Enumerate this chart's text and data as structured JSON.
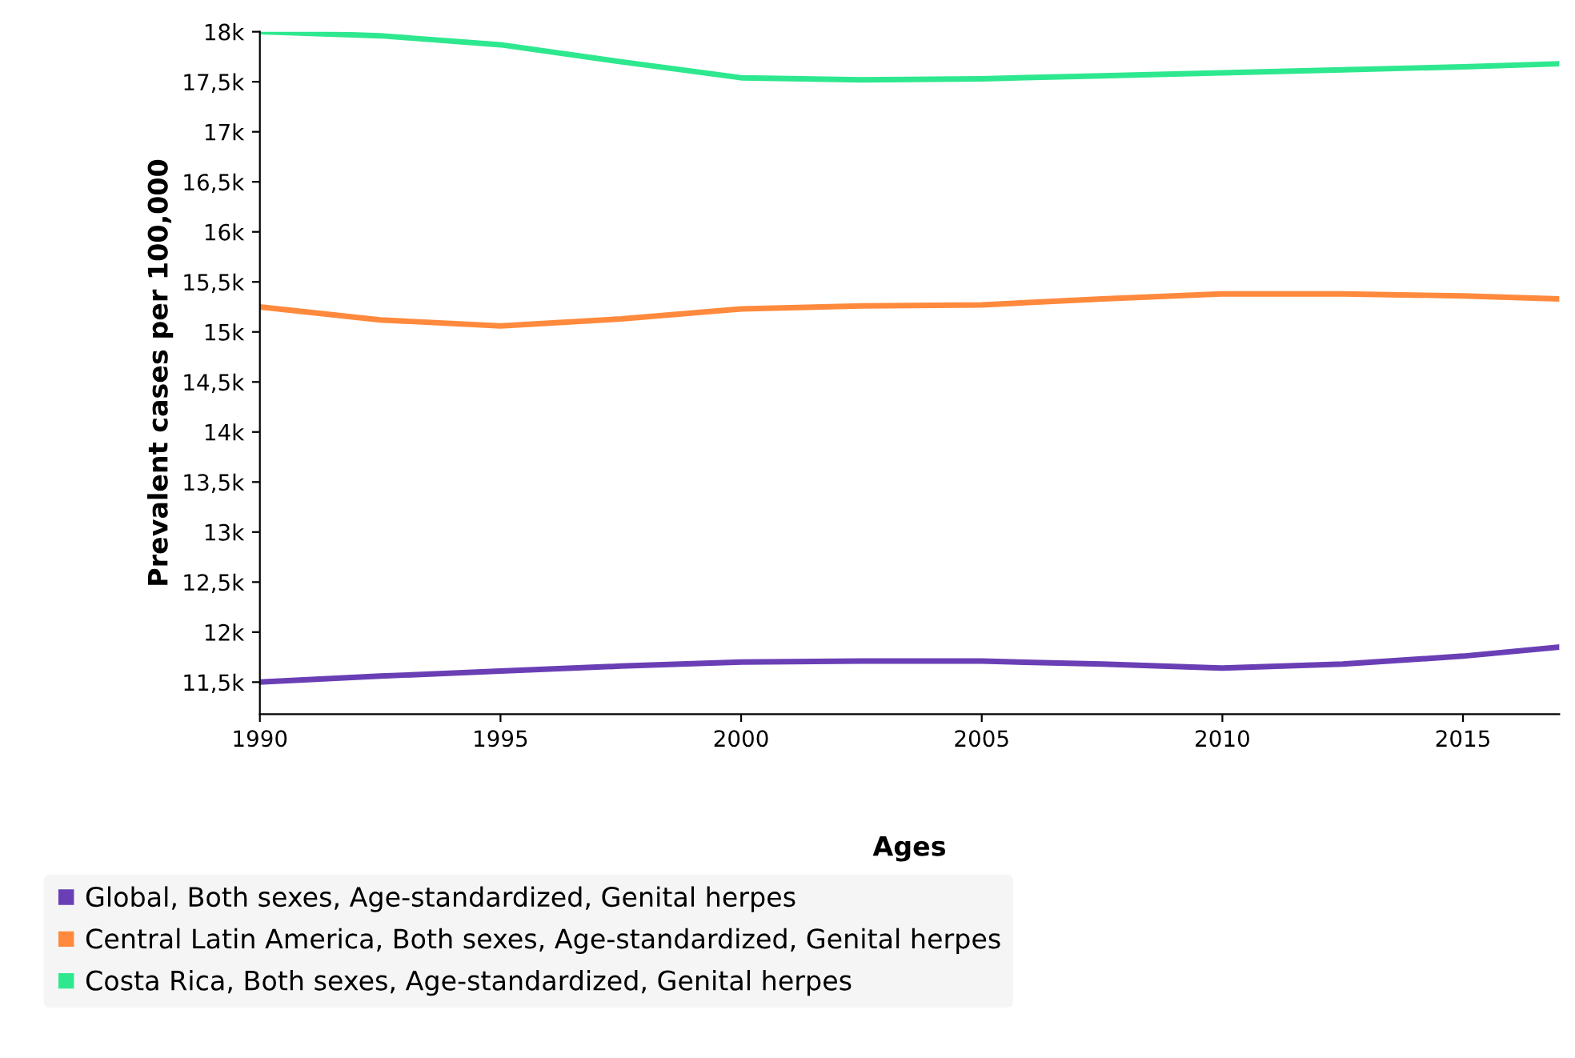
{
  "chart_data": {
    "type": "line",
    "xlabel": "Ages",
    "ylabel": "Prevalent cases per 100,000",
    "x": [
      1990,
      1992.5,
      1995,
      1997.5,
      2000,
      2002.5,
      2005,
      2007.5,
      2010,
      2012.5,
      2015,
      2017
    ],
    "series": [
      {
        "name": "Global, Both sexes, Age-standardized, Genital herpes",
        "color": "#6a3fb5",
        "values": [
          11500,
          11560,
          11610,
          11660,
          11700,
          11710,
          11710,
          11680,
          11640,
          11680,
          11760,
          11850
        ]
      },
      {
        "name": "Central Latin America, Both sexes, Age-standardized, Genital herpes",
        "color": "#ff8a3d",
        "values": [
          15250,
          15120,
          15060,
          15130,
          15230,
          15260,
          15270,
          15330,
          15380,
          15380,
          15360,
          15330
        ]
      },
      {
        "name": "Costa Rica, Both sexes, Age-standardized, Genital herpes",
        "color": "#2ee88f",
        "values": [
          18000,
          17960,
          17870,
          17700,
          17540,
          17520,
          17530,
          17560,
          17590,
          17620,
          17650,
          17680
        ]
      }
    ],
    "xlim": [
      1990,
      2017
    ],
    "xticks": [
      1990,
      1995,
      2000,
      2005,
      2010,
      2015
    ],
    "ylim": [
      11180,
      18000
    ],
    "yticks": [
      {
        "value": 11500,
        "label": "11,5k"
      },
      {
        "value": 12000,
        "label": "12k"
      },
      {
        "value": 12500,
        "label": "12,5k"
      },
      {
        "value": 13000,
        "label": "13k"
      },
      {
        "value": 13500,
        "label": "13,5k"
      },
      {
        "value": 14000,
        "label": "14k"
      },
      {
        "value": 14500,
        "label": "14,5k"
      },
      {
        "value": 15000,
        "label": "15k"
      },
      {
        "value": 15500,
        "label": "15,5k"
      },
      {
        "value": 16000,
        "label": "16k"
      },
      {
        "value": 16500,
        "label": "16,5k"
      },
      {
        "value": 17000,
        "label": "17k"
      },
      {
        "value": 17500,
        "label": "17,5k"
      },
      {
        "value": 18000,
        "label": "18k"
      }
    ],
    "grid": false,
    "legend": "bottom",
    "marker": "none",
    "line_style": "solid"
  }
}
